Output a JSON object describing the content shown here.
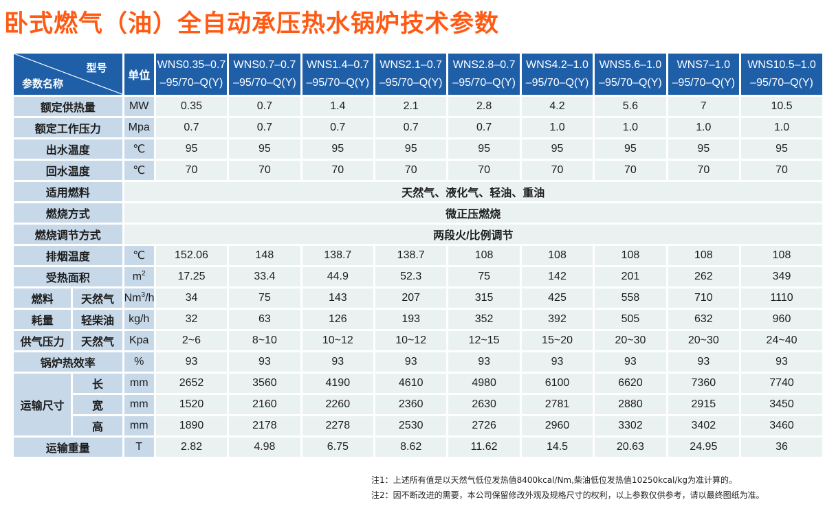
{
  "title": "卧式燃气（油）全自动承压热水锅炉技术参数",
  "header": {
    "diag_top": "型号",
    "diag_bottom": "参数名称",
    "unit": "单位",
    "models": [
      {
        "l1": "WNS0.35–0.7",
        "l2": "–95/70–Q(Y)"
      },
      {
        "l1": "WNS0.7–0.7",
        "l2": "–95/70–Q(Y)"
      },
      {
        "l1": "WNS1.4–0.7",
        "l2": "–95/70–Q(Y)"
      },
      {
        "l1": "WNS2.1–0.7",
        "l2": "–95/70–Q(Y)"
      },
      {
        "l1": "WNS2.8–0.7",
        "l2": "–95/70–Q(Y)"
      },
      {
        "l1": "WNS4.2–1.0",
        "l2": "–95/70–Q(Y)"
      },
      {
        "l1": "WNS5.6–1.0",
        "l2": "–95/70–Q(Y)"
      },
      {
        "l1": "WNS7–1.0",
        "l2": "–95/70–Q(Y)"
      },
      {
        "l1": "WNS10.5–1.0",
        "l2": "–95/70–Q(Y)"
      }
    ]
  },
  "labels": {
    "fuel": "燃料",
    "consumption": "耗量",
    "natural_gas": "天然气",
    "light_oil": "轻柴油",
    "supply_pressure": "供气压力",
    "transport_size": "运输尺寸",
    "length": "长",
    "width": "宽",
    "height": "高"
  },
  "rows": {
    "rated_heat": {
      "label": "额定供热量",
      "unit": "MW",
      "values": [
        "0.35",
        "0.7",
        "1.4",
        "2.1",
        "2.8",
        "4.2",
        "5.6",
        "7",
        "10.5"
      ]
    },
    "working_pressure": {
      "label": "额定工作压力",
      "unit": "Mpa",
      "values": [
        "0.7",
        "0.7",
        "0.7",
        "0.7",
        "0.7",
        "1.0",
        "1.0",
        "1.0",
        "1.0"
      ]
    },
    "outlet_temp": {
      "label": "出水温度",
      "unit": "℃",
      "values": [
        "95",
        "95",
        "95",
        "95",
        "95",
        "95",
        "95",
        "95",
        "95"
      ]
    },
    "return_temp": {
      "label": "回水温度",
      "unit": "℃",
      "values": [
        "70",
        "70",
        "70",
        "70",
        "70",
        "70",
        "70",
        "70",
        "70"
      ]
    },
    "fuel_type": {
      "label": "适用燃料",
      "merged": "天然气、液化气、轻油、重油"
    },
    "combustion": {
      "label": "燃烧方式",
      "merged": "微正压燃烧"
    },
    "regulation": {
      "label": "燃烧调节方式",
      "merged": "两段火/比例调节"
    },
    "exhaust_temp": {
      "label": "排烟温度",
      "unit": "℃",
      "values": [
        "152.06",
        "148",
        "138.7",
        "138.7",
        "108",
        "108",
        "108",
        "108",
        "108"
      ]
    },
    "heating_area": {
      "label": "受热面积",
      "unit": "m",
      "unit_sup": "2",
      "values": [
        "17.25",
        "33.4",
        "44.9",
        "52.3",
        "75",
        "142",
        "201",
        "262",
        "349"
      ]
    },
    "gas_consumption": {
      "unit": "Nm",
      "unit_sup": "3",
      "unit_tail": "/h",
      "values": [
        "34",
        "75",
        "143",
        "207",
        "315",
        "425",
        "558",
        "710",
        "1110"
      ]
    },
    "oil_consumption": {
      "unit": "kg/h",
      "values": [
        "32",
        "63",
        "126",
        "193",
        "352",
        "392",
        "505",
        "632",
        "960"
      ]
    },
    "gas_pressure": {
      "unit": "Kpa",
      "values": [
        "2~6",
        "8~10",
        "10~12",
        "10~12",
        "12~15",
        "15~20",
        "20~30",
        "20~30",
        "24~40"
      ]
    },
    "efficiency": {
      "label": "锅炉热效率",
      "unit": "%",
      "values": [
        "93",
        "93",
        "93",
        "93",
        "93",
        "93",
        "93",
        "93",
        "93"
      ]
    },
    "length": {
      "unit": "mm",
      "values": [
        "2652",
        "3560",
        "4190",
        "4610",
        "4980",
        "6100",
        "6620",
        "7360",
        "7740"
      ]
    },
    "width": {
      "unit": "mm",
      "values": [
        "1520",
        "2160",
        "2260",
        "2360",
        "2630",
        "2781",
        "2880",
        "2915",
        "3450"
      ]
    },
    "height": {
      "unit": "mm",
      "values": [
        "1890",
        "2178",
        "2278",
        "2530",
        "2726",
        "2960",
        "3302",
        "3402",
        "3460"
      ]
    },
    "weight": {
      "label": "运输重量",
      "unit": "T",
      "values": [
        "2.82",
        "4.98",
        "6.75",
        "8.62",
        "11.62",
        "14.5",
        "20.63",
        "24.95",
        "36"
      ]
    }
  },
  "notes": [
    "注1：上述所有值是以天然气低位发热值8400kcal/Nm,柴油低位发热值10250kcal/kg为准计算的。",
    "注2：因不断改进的需要，本公司保留修改外观及规格尺寸的权利，以上参数仅供参考，请以最终图纸为准。"
  ],
  "colors": {
    "title": "#ff5a14",
    "header_bg": "#1f5fa8",
    "label_bg": "#c7d8e9",
    "value_bg": "#eaf2f1"
  }
}
